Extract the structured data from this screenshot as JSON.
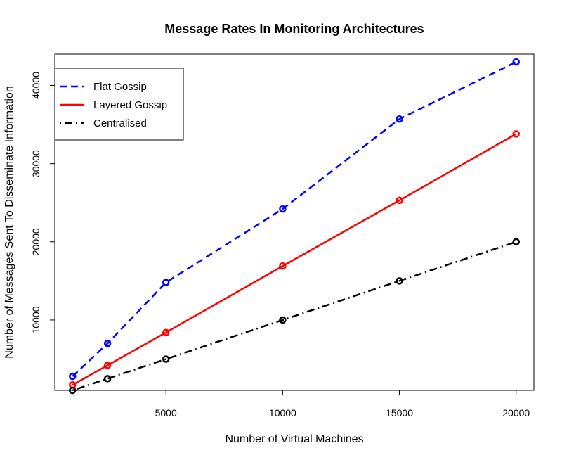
{
  "chart_data": {
    "type": "line",
    "title": "Message Rates In Monitoring Architectures",
    "xlabel": "Number of Virtual Machines",
    "ylabel": "Number of Messages Sent To Disseminate Information",
    "x": [
      1000,
      2500,
      5000,
      10000,
      15000,
      20000
    ],
    "xlim": [
      240,
      20760
    ],
    "ylim": [
      1000,
      44000
    ],
    "xticks": [
      5000,
      10000,
      15000,
      20000
    ],
    "yticks": [
      10000,
      20000,
      30000,
      40000
    ],
    "legend_position": "top-left",
    "grid": false,
    "series": [
      {
        "name": "Flat Gossip",
        "values": [
          2800,
          7000,
          14800,
          24200,
          35700,
          43000
        ],
        "color": "#0000ff",
        "dash": "dashed"
      },
      {
        "name": "Layered Gossip",
        "values": [
          1700,
          4200,
          8400,
          16900,
          25300,
          33800
        ],
        "color": "#ff0000",
        "dash": "solid"
      },
      {
        "name": "Centralised",
        "values": [
          1000,
          2500,
          5000,
          10000,
          15000,
          20000
        ],
        "color": "#000000",
        "dash": "dotdash"
      }
    ]
  }
}
